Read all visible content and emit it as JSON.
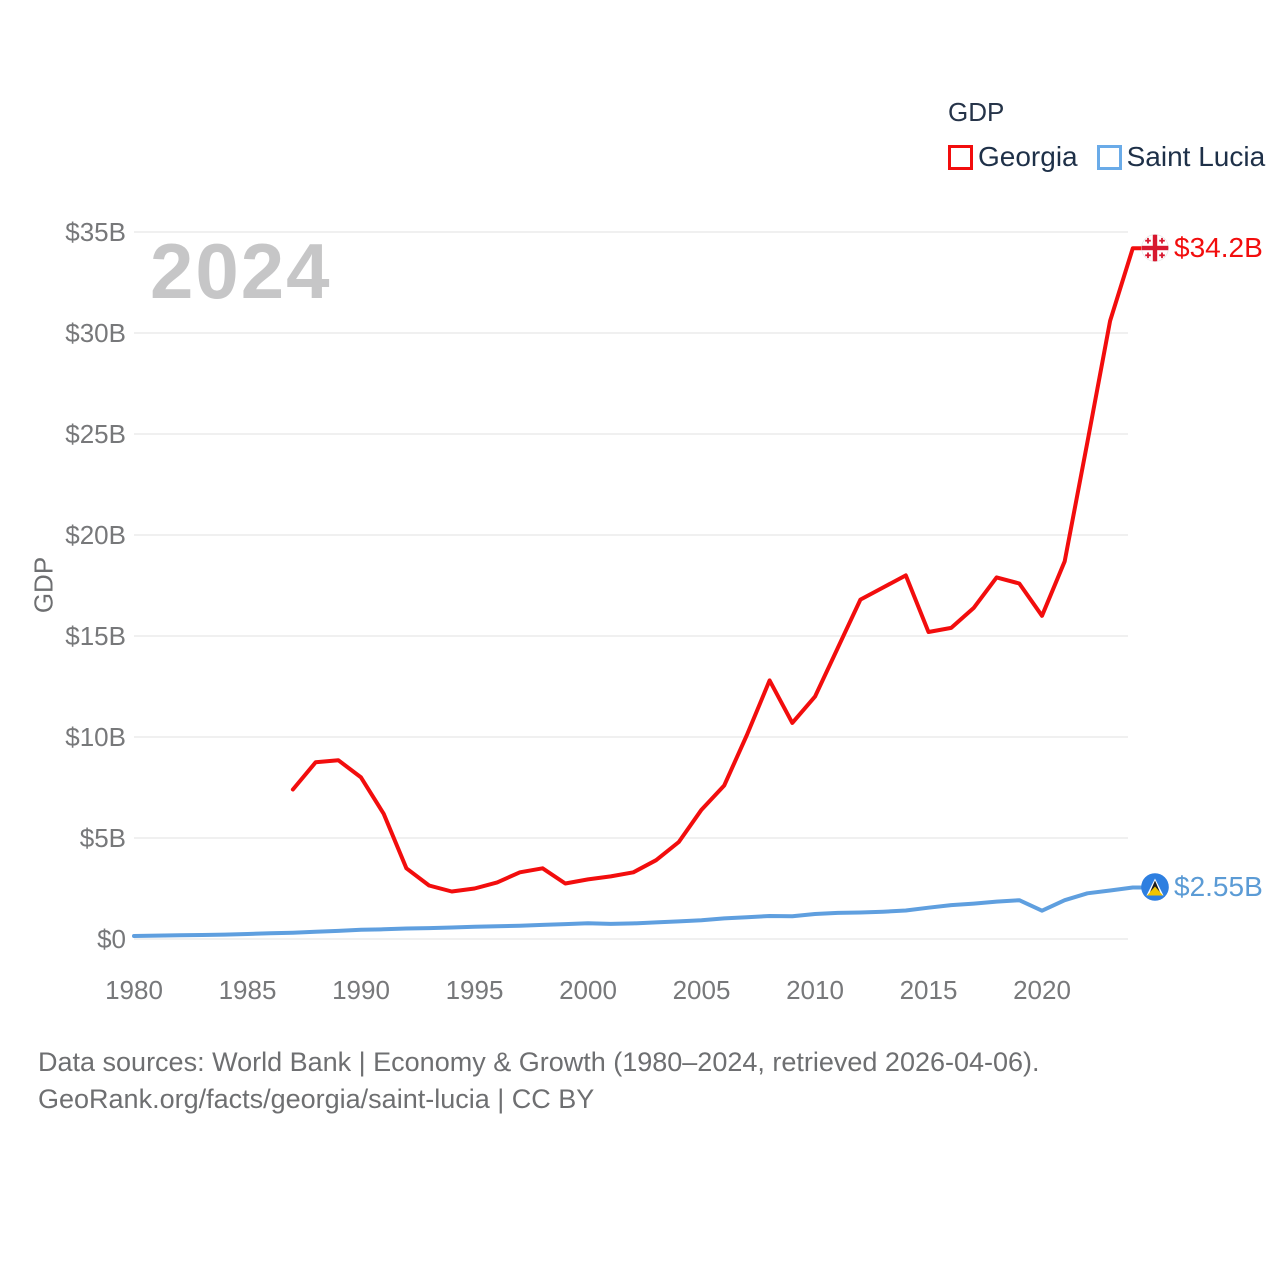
{
  "watermark": "2024",
  "legend": {
    "title": "GDP",
    "items": [
      {
        "label": "Georgia",
        "color": "#f20d0d"
      },
      {
        "label": "Saint Lucia",
        "color": "#6aabe8"
      }
    ]
  },
  "y_axis": {
    "title": "GDP",
    "ticks": [
      {
        "value": 0,
        "label": "$0"
      },
      {
        "value": 5,
        "label": "$5B"
      },
      {
        "value": 10,
        "label": "$10B"
      },
      {
        "value": 15,
        "label": "$15B"
      },
      {
        "value": 20,
        "label": "$20B"
      },
      {
        "value": 25,
        "label": "$25B"
      },
      {
        "value": 30,
        "label": "$30B"
      },
      {
        "value": 35,
        "label": "$35B"
      }
    ]
  },
  "x_axis": {
    "ticks": [
      1980,
      1985,
      1990,
      1995,
      2000,
      2005,
      2010,
      2015,
      2020
    ]
  },
  "footer": {
    "line1": "Data sources: World Bank | Economy & Growth (1980–2024, retrieved 2026-04-06).",
    "line2": "GeoRank.org/facts/georgia/saint-lucia | CC BY"
  },
  "colors": {
    "georgia_line": "#f20d0d",
    "georgia_label": "#f20d0d",
    "georgia_flag_cross": "#d7182f",
    "saint_lucia_line": "#5f9fdf",
    "saint_lucia_label": "#5b9bd5",
    "saint_lucia_flag_circle": "#2e7fe0",
    "saint_lucia_flag_gold": "#f2c500",
    "grid": "#ececec",
    "tick_text": "#77787a",
    "legend_text": "#1e3048",
    "watermark_text": "#c6c6c7",
    "footer_text": "#6e6f71"
  },
  "chart_data": {
    "type": "line",
    "title": "GDP",
    "ylabel": "GDP",
    "unit": "billion USD",
    "x_range": [
      1980,
      2024
    ],
    "ylim": [
      0,
      35
    ],
    "grid": "horizontal",
    "legend_position": "top-right",
    "series": [
      {
        "name": "Georgia",
        "color": "#f20d0d",
        "start_year": 1987,
        "end_label": "$34.2B",
        "values": [
          7.4,
          8.75,
          8.85,
          8.0,
          6.2,
          3.5,
          2.65,
          2.35,
          2.5,
          2.8,
          3.3,
          3.5,
          2.75,
          2.95,
          3.1,
          3.3,
          3.9,
          4.8,
          6.4,
          7.6,
          10.1,
          12.8,
          10.7,
          12.0,
          14.4,
          16.8,
          17.4,
          18.0,
          15.2,
          15.4,
          16.4,
          17.9,
          17.6,
          16.0,
          18.7,
          24.6,
          30.6,
          34.2
        ]
      },
      {
        "name": "Saint Lucia",
        "color": "#5f9fdf",
        "start_year": 1980,
        "end_label": "$2.55B",
        "values": [
          0.15,
          0.17,
          0.19,
          0.2,
          0.22,
          0.25,
          0.28,
          0.31,
          0.36,
          0.4,
          0.46,
          0.48,
          0.52,
          0.54,
          0.57,
          0.61,
          0.63,
          0.66,
          0.7,
          0.74,
          0.78,
          0.75,
          0.77,
          0.82,
          0.87,
          0.93,
          1.02,
          1.08,
          1.14,
          1.13,
          1.24,
          1.29,
          1.31,
          1.35,
          1.41,
          1.55,
          1.68,
          1.75,
          1.85,
          1.92,
          1.4,
          1.92,
          2.26,
          2.4,
          2.55
        ]
      }
    ]
  }
}
